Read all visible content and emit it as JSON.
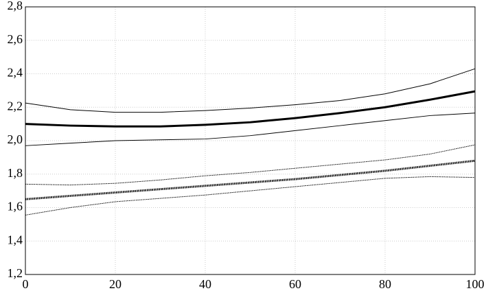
{
  "chart_data": {
    "type": "line",
    "x": [
      0,
      10,
      20,
      30,
      40,
      50,
      60,
      70,
      80,
      90,
      100
    ],
    "series": [
      {
        "color": "#000000",
        "width": 3,
        "dash": "solid",
        "values": [
          2.1,
          2.09,
          2.085,
          2.085,
          2.095,
          2.11,
          2.135,
          2.165,
          2.2,
          2.245,
          2.295
        ]
      },
      {
        "color": "#000000",
        "width": 1,
        "dash": "solid",
        "values": [
          2.225,
          2.185,
          2.17,
          2.17,
          2.18,
          2.195,
          2.215,
          2.24,
          2.28,
          2.34,
          2.43
        ]
      },
      {
        "color": "#000000",
        "width": 1,
        "dash": "solid",
        "values": [
          1.97,
          1.985,
          2.0,
          2.005,
          2.01,
          2.03,
          2.06,
          2.09,
          2.12,
          2.15,
          2.165
        ]
      },
      {
        "color": "#000000",
        "width": 3,
        "dash": "dotted",
        "values": [
          1.65,
          1.67,
          1.69,
          1.71,
          1.73,
          1.75,
          1.77,
          1.795,
          1.82,
          1.85,
          1.88
        ]
      },
      {
        "color": "#000000",
        "width": 1,
        "dash": "dotted",
        "values": [
          1.74,
          1.735,
          1.745,
          1.765,
          1.79,
          1.81,
          1.835,
          1.86,
          1.885,
          1.92,
          1.975
        ]
      },
      {
        "color": "#000000",
        "width": 1,
        "dash": "dotted",
        "values": [
          1.555,
          1.6,
          1.635,
          1.655,
          1.675,
          1.7,
          1.725,
          1.75,
          1.775,
          1.785,
          1.78
        ]
      }
    ],
    "xlim": [
      0,
      100
    ],
    "xticks": [
      0,
      20,
      40,
      60,
      80,
      100
    ],
    "ylim": [
      1.2,
      2.8
    ],
    "yticks": [
      {
        "value": 1.2,
        "label": "1,2"
      },
      {
        "value": 1.4,
        "label": "1,4"
      },
      {
        "value": 1.6,
        "label": "1,6"
      },
      {
        "value": 1.8,
        "label": "1,8"
      },
      {
        "value": 2.0,
        "label": "2,0"
      },
      {
        "value": 2.2,
        "label": "2,2"
      },
      {
        "value": 2.4,
        "label": "2,4"
      },
      {
        "value": 2.6,
        "label": "2,6"
      },
      {
        "value": 2.8,
        "label": "2,8"
      }
    ],
    "grid": true
  }
}
